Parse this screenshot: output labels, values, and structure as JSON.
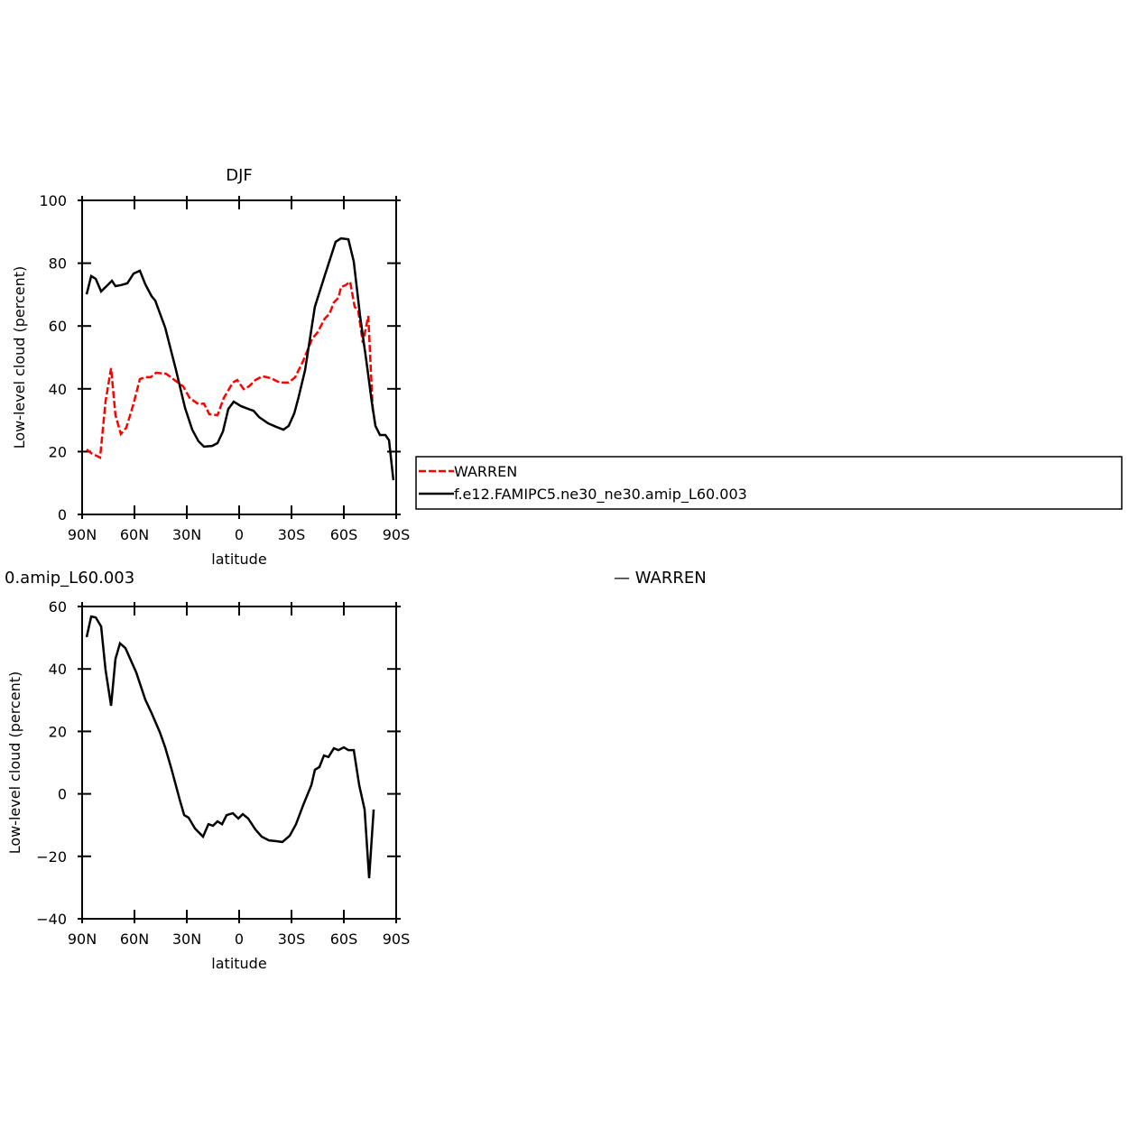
{
  "chart_data": [
    {
      "type": "line",
      "title": "DJF",
      "xlabel": "latitude",
      "ylabel": "Low-level cloud (percent)",
      "xlim": [
        90,
        -90
      ],
      "xticks": [
        {
          "value": 90,
          "label": "90N"
        },
        {
          "value": 60,
          "label": "60N"
        },
        {
          "value": 30,
          "label": "30N"
        },
        0,
        {
          "value": -30,
          "label": "30S"
        },
        {
          "value": -60,
          "label": "60S"
        },
        {
          "value": -90,
          "label": "90S"
        }
      ],
      "ylim": [
        0,
        100
      ],
      "yticks": [
        0,
        20,
        40,
        60,
        80,
        100
      ],
      "legend": "right",
      "series": [
        {
          "name": "WARREN",
          "color": "#ff0000",
          "style": "dashed",
          "x": [
            87.4,
            84.8,
            79.7,
            76.6,
            73.4,
            70.9,
            67.8,
            64.7,
            60.5,
            56.9,
            53.8,
            50.7,
            47.6,
            41.9,
            37.8,
            32.1,
            28.4,
            23.3,
            20.2,
            17.1,
            12.4,
            8.8,
            3.6,
            1.1,
            -2.6,
            -5.7,
            -9.3,
            -13.4,
            -18.1,
            -23.2,
            -28.4,
            -32.1,
            -36.7,
            -41.9,
            -45,
            -49.1,
            -51.7,
            -54.3,
            -56.9,
            -58.4,
            -61,
            -63.6,
            -66.2,
            -68.3,
            -70.9,
            -74,
            -76.6
          ],
          "values": [
            20.7,
            19.5,
            18.1,
            35.9,
            46.6,
            31.6,
            25.6,
            27.6,
            35.3,
            43.1,
            43.7,
            43.7,
            45.1,
            44.8,
            43.1,
            40.8,
            37.1,
            35.1,
            35.3,
            31.9,
            31.6,
            37.1,
            42,
            42.8,
            39.9,
            40.8,
            42.8,
            44,
            43.4,
            42,
            42,
            43.7,
            48.9,
            56,
            58,
            62.4,
            63.8,
            67.5,
            69,
            72.4,
            73,
            74.1,
            66.1,
            64.7,
            54.6,
            63.2,
            33
          ]
        },
        {
          "name": "f.e12.FAMIPC5.ne30_ne30.amip_L60.003",
          "color": "#000000",
          "style": "solid",
          "x": [
            87.4,
            84.8,
            82.2,
            79.1,
            76,
            72.9,
            70.9,
            67.8,
            64.1,
            60.5,
            56.9,
            53.8,
            50.2,
            48.1,
            42.4,
            36.2,
            31,
            26.9,
            23.3,
            20.2,
            15.5,
            12.4,
            9.3,
            6.2,
            3.1,
            -1,
            -5.2,
            -8.3,
            -11.4,
            -16.6,
            -21.2,
            -25.4,
            -28.4,
            -31.6,
            -34.1,
            -37.8,
            -43.4,
            -49.1,
            -55.3,
            -58.4,
            -62.6,
            -65.7,
            -69.3,
            -72.9,
            -76,
            -78.1,
            -80.7,
            -83.8,
            -85.9,
            -88.4
          ],
          "values": [
            70.1,
            75.9,
            75,
            71,
            72.7,
            74.4,
            72.7,
            73,
            73.6,
            76.7,
            77.6,
            73.3,
            69.5,
            68.1,
            59.5,
            46,
            33.9,
            27,
            23.3,
            21.6,
            21.8,
            22.7,
            26.4,
            33.6,
            35.9,
            34.5,
            33.6,
            33,
            31,
            29,
            27.9,
            27,
            28.2,
            32.2,
            37.4,
            46,
            66.1,
            76.1,
            86.8,
            87.9,
            87.6,
            80.5,
            63.2,
            48.9,
            35.9,
            28.2,
            25.3,
            25.3,
            23.6,
            10.9
          ]
        }
      ]
    },
    {
      "type": "line",
      "title_left": "0.amip_L60.003",
      "title_right": "— WARREN",
      "xlabel": "latitude",
      "ylabel": "Low-level cloud (percent)",
      "xlim": [
        90,
        -90
      ],
      "xticks": [
        {
          "value": 90,
          "label": "90N"
        },
        {
          "value": 60,
          "label": "60N"
        },
        {
          "value": 30,
          "label": "30N"
        },
        0,
        {
          "value": -30,
          "label": "30S"
        },
        {
          "value": -60,
          "label": "60S"
        },
        {
          "value": -90,
          "label": "90S"
        }
      ],
      "ylim": [
        -40,
        60
      ],
      "yticks": [
        {
          "value": -40,
          "label": "−40"
        },
        {
          "value": -20,
          "label": "−20"
        },
        0,
        20,
        40,
        60
      ],
      "color": "#000000",
      "x": [
        87.4,
        84.8,
        82.2,
        79.1,
        76.6,
        73.4,
        70.9,
        68.3,
        65.2,
        59,
        53.8,
        50.2,
        45.5,
        42.4,
        38.8,
        34.1,
        31.5,
        29,
        25.3,
        20.7,
        17.6,
        15,
        12.4,
        9.8,
        7.2,
        3.6,
        0.5,
        -2.1,
        -5.2,
        -9.3,
        -12.9,
        -17.1,
        -20.7,
        -24.8,
        -29,
        -32.6,
        -36.7,
        -41.4,
        -43.4,
        -46,
        -48.6,
        -51.2,
        -54.3,
        -56.9,
        -60,
        -62.6,
        -65.7,
        -68.8,
        -71.9,
        -74.5,
        -77.1
      ],
      "values": [
        50.2,
        56.8,
        56.5,
        53.6,
        39.8,
        28.2,
        43.2,
        48.2,
        46.7,
        38.9,
        30.2,
        25.9,
        19.8,
        14.9,
        8,
        -1.8,
        -6.8,
        -7.6,
        -11.1,
        -13.7,
        -9.7,
        -10.2,
        -8.8,
        -9.7,
        -6.8,
        -6.2,
        -7.9,
        -6.5,
        -7.9,
        -11.4,
        -13.7,
        -14.9,
        -15.1,
        -15.4,
        -13.4,
        -9.7,
        -3.6,
        2.8,
        7.7,
        8.6,
        12.3,
        11.8,
        14.6,
        14,
        14.9,
        14,
        14,
        2.8,
        -5,
        -27,
        -5
      ]
    }
  ]
}
